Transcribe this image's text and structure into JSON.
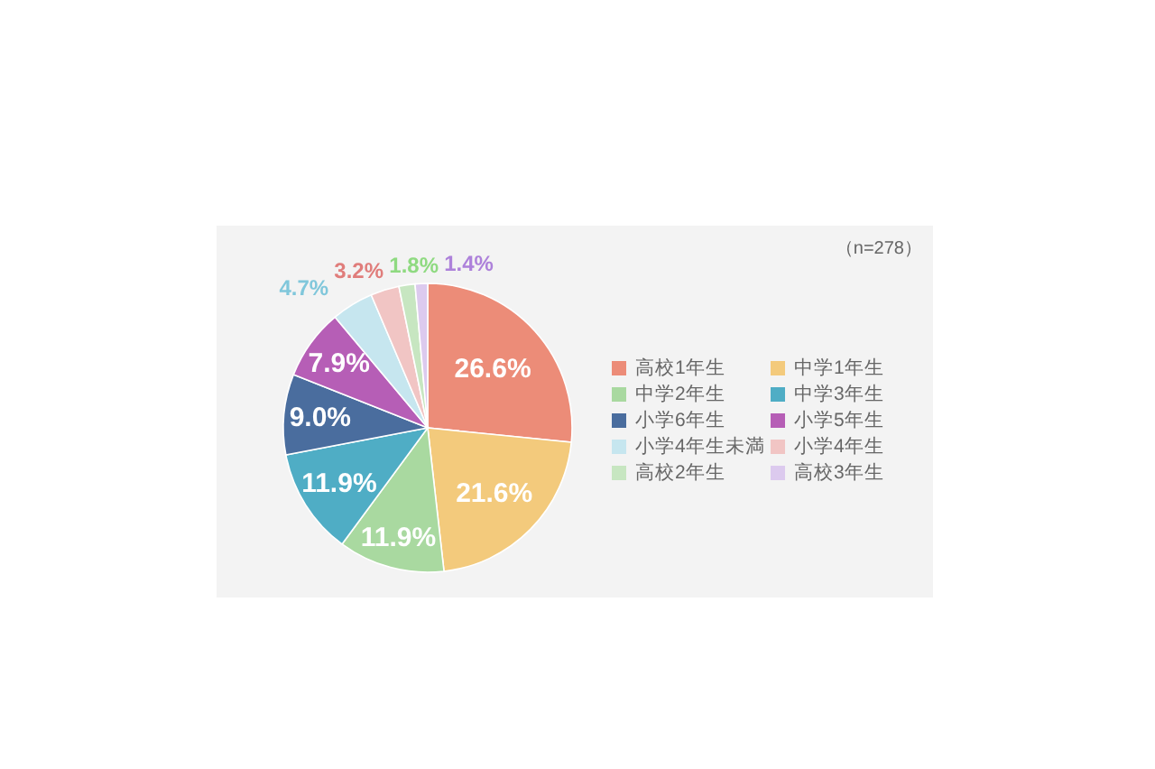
{
  "chart_data": {
    "type": "pie",
    "categories": [
      "高校1年生",
      "中学1年生",
      "中学2年生",
      "中学3年生",
      "小学6年生",
      "小学5年生",
      "小学4年生未満",
      "小学4年生",
      "高校2年生",
      "高校3年生"
    ],
    "values": [
      26.6,
      21.6,
      11.9,
      11.9,
      9.0,
      7.9,
      4.7,
      3.2,
      1.8,
      1.4
    ],
    "colors": [
      "#ec8c78",
      "#f3ca7c",
      "#a9d9a0",
      "#4fadc5",
      "#4a6d9e",
      "#b65eb6",
      "#c6e6ef",
      "#f1c5c4",
      "#c7e6c1",
      "#dccaee"
    ],
    "value_labels": [
      "26.6%",
      "21.6%",
      "11.9%",
      "11.9%",
      "9.0%",
      "7.9%",
      "4.7%",
      "3.2%",
      "1.8%",
      "1.4%"
    ],
    "legend": "right",
    "annotations": [
      "（n=278）"
    ]
  }
}
